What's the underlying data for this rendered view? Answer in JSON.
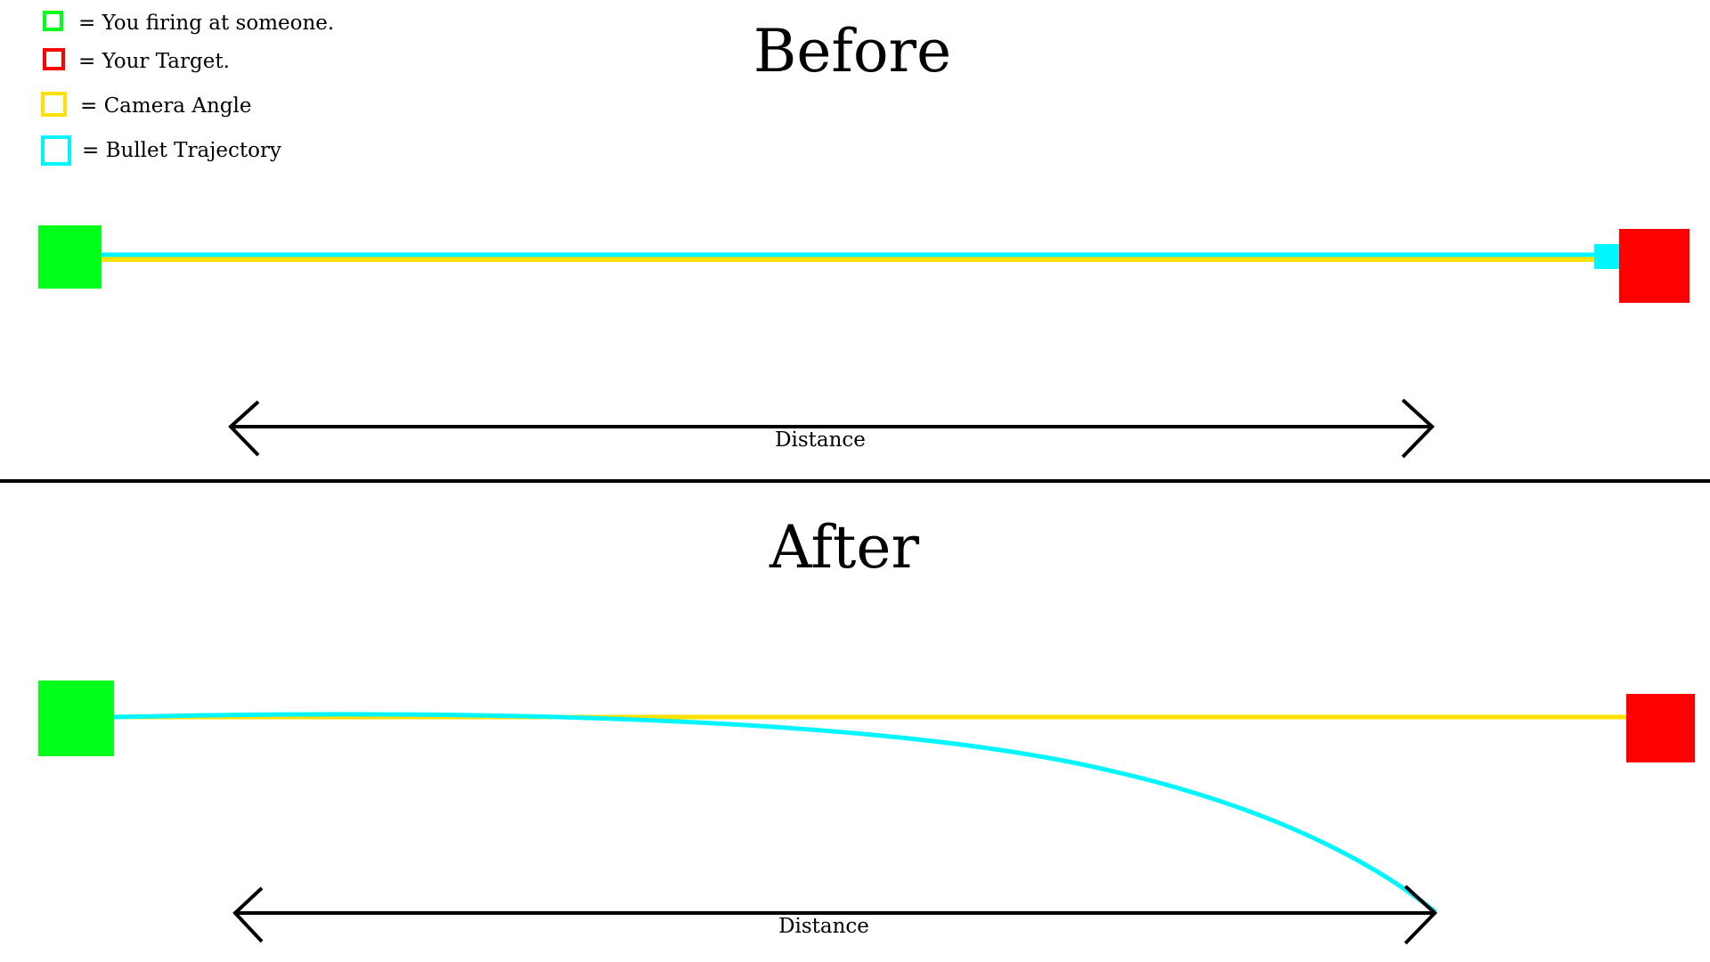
{
  "colors": {
    "shooter": "#00ff1a",
    "target": "#ff0000",
    "camera": "#ffe000",
    "bullet": "#00f6ff",
    "ink": "#000000",
    "background": "#ffffff"
  },
  "legend": [
    {
      "color_key": "shooter",
      "label": "= You firing at someone."
    },
    {
      "color_key": "target",
      "label": "= Your Target."
    },
    {
      "color_key": "camera",
      "label": "= Camera Angle"
    },
    {
      "color_key": "bullet",
      "label": "= Bullet Trajectory"
    }
  ],
  "panels": {
    "before": {
      "title": "Before",
      "distance_label": "Distance"
    },
    "after": {
      "title": "After",
      "distance_label": "Distance"
    }
  }
}
